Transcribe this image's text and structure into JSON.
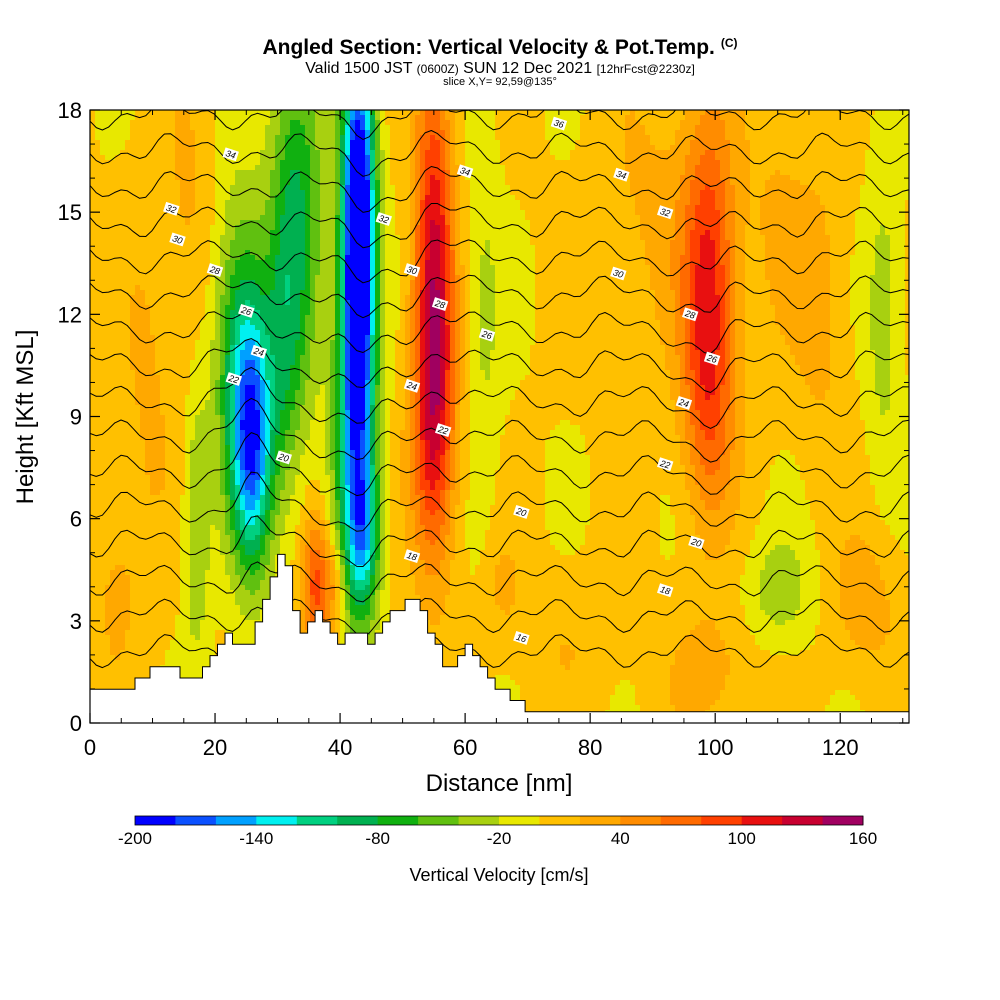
{
  "title": {
    "main": "Angled Section: Vertical Velocity & Pot.Temp.",
    "main_suffix": "(C)",
    "valid_prefix": "Valid 1500 JST",
    "valid_utc": "(0600Z)",
    "valid_date": "SUN 12 Dec 2021",
    "valid_fcst": "[12hrFcst@2230z]",
    "slice": "slice X,Y= 92,59@135°"
  },
  "chart_data": {
    "type": "heatmap",
    "xlabel": "Distance [nm]",
    "ylabel": "Height [Kft MSL]",
    "xlim": [
      0,
      131
    ],
    "ylim": [
      0,
      18
    ],
    "x_ticks": [
      0,
      20,
      40,
      60,
      80,
      100,
      120
    ],
    "y_ticks": [
      0,
      3,
      6,
      9,
      12,
      15,
      18
    ],
    "colorbar": {
      "title": "Vertical Velocity [cm/s]",
      "tick_labels": [
        "-200",
        "-140",
        "-80",
        "-20",
        "40",
        "100",
        "160"
      ],
      "range": [
        -200,
        160
      ],
      "step": 20,
      "colors": [
        "#0000ff",
        "#0a50ff",
        "#00a0ff",
        "#00f0f0",
        "#00d080",
        "#00b050",
        "#10b010",
        "#60c010",
        "#a8d010",
        "#e8e800",
        "#ffc000",
        "#ffa800",
        "#ff8c00",
        "#ff6a00",
        "#ff4000",
        "#e81010",
        "#c80030",
        "#a00060"
      ]
    },
    "terrain_nm_kft": [
      [
        0,
        1.0
      ],
      [
        5,
        1.0
      ],
      [
        7,
        1.3
      ],
      [
        10,
        1.6
      ],
      [
        13,
        1.6
      ],
      [
        15,
        1.3
      ],
      [
        18,
        1.6
      ],
      [
        20,
        2.2
      ],
      [
        22,
        2.6
      ],
      [
        24,
        2.2
      ],
      [
        26,
        2.6
      ],
      [
        28,
        3.7
      ],
      [
        29.5,
        4.9
      ],
      [
        31,
        4.9
      ],
      [
        32,
        3.6
      ],
      [
        34,
        2.6
      ],
      [
        36,
        3.2
      ],
      [
        38,
        2.6
      ],
      [
        40,
        2.4
      ],
      [
        42,
        2.7
      ],
      [
        44,
        2.4
      ],
      [
        46,
        2.7
      ],
      [
        48,
        3.2
      ],
      [
        50,
        3.6
      ],
      [
        52,
        3.6
      ],
      [
        54,
        2.6
      ],
      [
        56,
        2.0
      ],
      [
        57,
        1.5
      ],
      [
        60,
        2.2
      ],
      [
        62,
        1.6
      ],
      [
        64,
        1.2
      ],
      [
        66,
        0.9
      ],
      [
        68,
        0.6
      ],
      [
        70,
        0.3
      ],
      [
        72,
        0.3
      ],
      [
        131,
        0.3
      ]
    ],
    "w_anomalies": [
      {
        "x": 26,
        "z": 8,
        "w": -150,
        "sx": 2.3,
        "sz": 2.5
      },
      {
        "x": 24,
        "z": 11,
        "w": -90,
        "sx": 3,
        "sz": 3
      },
      {
        "x": 33,
        "z": 15,
        "w": -85,
        "sx": 3,
        "sz": 4
      },
      {
        "x": 31,
        "z": 10,
        "w": -40,
        "sx": 2,
        "sz": 3
      },
      {
        "x": 43,
        "z": 15,
        "w": -220,
        "sx": 1.8,
        "sz": 3.5
      },
      {
        "x": 42.5,
        "z": 9,
        "w": -150,
        "sx": 2.2,
        "sz": 4
      },
      {
        "x": 44,
        "z": 5.5,
        "w": -80,
        "sx": 1.8,
        "sz": 1.5
      },
      {
        "x": 55,
        "z": 14,
        "w": 110,
        "sx": 2.2,
        "sz": 4
      },
      {
        "x": 55,
        "z": 8.5,
        "w": 90,
        "sx": 2.5,
        "sz": 3
      },
      {
        "x": 36,
        "z": 4,
        "w": 80,
        "sx": 1.5,
        "sz": 1.5
      },
      {
        "x": 39,
        "z": 4,
        "w": 45,
        "sx": 1.5,
        "sz": 1
      },
      {
        "x": 99,
        "z": 13,
        "w": 95,
        "sx": 3,
        "sz": 3.5
      },
      {
        "x": 99,
        "z": 9,
        "w": 40,
        "sx": 3,
        "sz": 2.5
      },
      {
        "x": 17,
        "z": 6,
        "w": -45,
        "sx": 1.5,
        "sz": 3
      },
      {
        "x": 16,
        "z": 14,
        "w": 22,
        "sx": 3,
        "sz": 4
      },
      {
        "x": 9,
        "z": 10,
        "w": 20,
        "sx": 3,
        "sz": 4
      },
      {
        "x": 4,
        "z": 4,
        "w": 22,
        "sx": 3,
        "sz": 2
      },
      {
        "x": 63,
        "z": 12,
        "w": -25,
        "sx": 2,
        "sz": 4
      },
      {
        "x": 66,
        "z": 4,
        "w": 20,
        "sx": 2,
        "sz": 1
      },
      {
        "x": 90,
        "z": 15,
        "w": 22,
        "sx": 6,
        "sz": 3
      },
      {
        "x": 110,
        "z": 3.8,
        "w": -35,
        "sx": 4,
        "sz": 1.2
      },
      {
        "x": 127,
        "z": 12,
        "w": -35,
        "sx": 2,
        "sz": 3
      },
      {
        "x": 117,
        "z": 12,
        "w": 25,
        "sx": 3,
        "sz": 3
      },
      {
        "x": 124,
        "z": 3.5,
        "w": 30,
        "sx": 4,
        "sz": 1.5
      },
      {
        "x": 100,
        "z": 1.5,
        "w": 25,
        "sx": 6,
        "sz": 1.5
      },
      {
        "x": 76,
        "z": 2.5,
        "w": 15,
        "sx": 6,
        "sz": 1.5
      },
      {
        "x": 110,
        "z": 15,
        "w": 20,
        "sx": 4,
        "sz": 3
      }
    ],
    "theta_contours": {
      "levels": [
        6,
        8,
        10,
        12,
        14,
        16,
        18,
        20,
        22,
        24,
        26,
        28,
        30,
        32,
        34,
        36
      ],
      "labels": [
        {
          "x": 23,
          "z": 10.1,
          "text": "22"
        },
        {
          "x": 27,
          "z": 10.9,
          "text": "24"
        },
        {
          "x": 25,
          "z": 12.1,
          "text": "26"
        },
        {
          "x": 20,
          "z": 13.3,
          "text": "28"
        },
        {
          "x": 14,
          "z": 14.2,
          "text": "30"
        },
        {
          "x": 13,
          "z": 15.1,
          "text": "32"
        },
        {
          "x": 22.5,
          "z": 16.7,
          "text": "34"
        },
        {
          "x": 31,
          "z": 7.8,
          "text": "20"
        },
        {
          "x": 51.5,
          "z": 9.9,
          "text": "24"
        },
        {
          "x": 51.5,
          "z": 13.3,
          "text": "30"
        },
        {
          "x": 47,
          "z": 14.8,
          "text": "32"
        },
        {
          "x": 56,
          "z": 12.3,
          "text": "28"
        },
        {
          "x": 63.5,
          "z": 11.4,
          "text": "26"
        },
        {
          "x": 56.5,
          "z": 8.6,
          "text": "22"
        },
        {
          "x": 60,
          "z": 16.2,
          "text": "34"
        },
        {
          "x": 75,
          "z": 17.6,
          "text": "36"
        },
        {
          "x": 51.5,
          "z": 4.9,
          "text": "18"
        },
        {
          "x": 69,
          "z": 6.2,
          "text": "20"
        },
        {
          "x": 69,
          "z": 2.5,
          "text": "16"
        },
        {
          "x": 92,
          "z": 7.6,
          "text": "22"
        },
        {
          "x": 95,
          "z": 9.4,
          "text": "24"
        },
        {
          "x": 99.5,
          "z": 10.7,
          "text": "26"
        },
        {
          "x": 96,
          "z": 12,
          "text": "28"
        },
        {
          "x": 84.5,
          "z": 13.2,
          "text": "30"
        },
        {
          "x": 92,
          "z": 15,
          "text": "32"
        },
        {
          "x": 85,
          "z": 16.1,
          "text": "34"
        },
        {
          "x": 97,
          "z": 5.3,
          "text": "20"
        },
        {
          "x": 92,
          "z": 3.9,
          "text": "18"
        }
      ]
    }
  }
}
